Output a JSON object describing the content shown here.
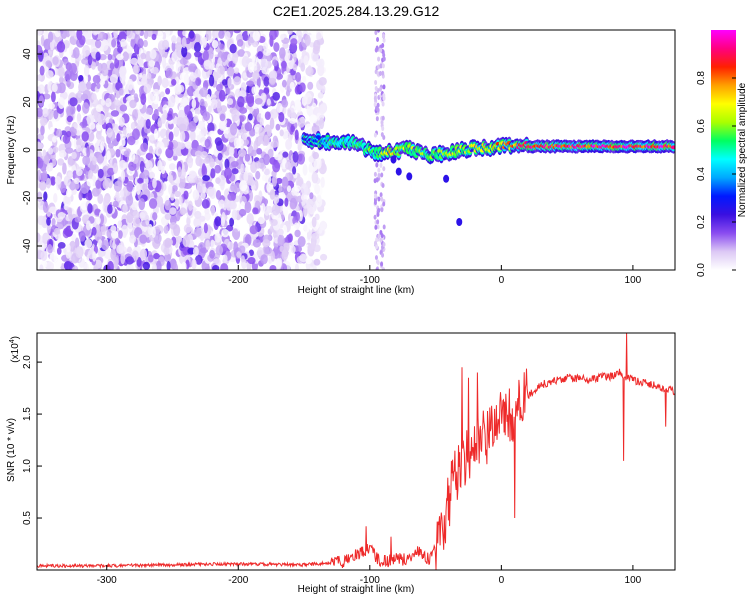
{
  "title": "C2E1.2025.284.13.29.G12",
  "chart_data": [
    {
      "type": "heatmap",
      "xlabel": "Height of straight line (km)",
      "ylabel": "Frequency (Hz)",
      "xlim": [
        -353,
        132
      ],
      "ylim": [
        -50,
        50
      ],
      "xticks": [
        -300,
        -200,
        -100,
        0,
        100
      ],
      "yticks": [
        -40,
        -20,
        0,
        20,
        40
      ],
      "colorbar": {
        "label": "Normalized spectral amplitude",
        "range": [
          0,
          1
        ],
        "ticks": [
          0.0,
          0.2,
          0.4,
          0.6,
          0.8
        ],
        "colors": [
          "#ffffff",
          "#dcc8f5",
          "#8a4cf0",
          "#3a10e0",
          "#0018ff",
          "#00a8ff",
          "#00ffff",
          "#00ff60",
          "#aaff00",
          "#ffff00",
          "#ffa000",
          "#ff2000",
          "#ff0080",
          "#ff00ff"
        ]
      },
      "ridge": {
        "description_free_values": true,
        "x": [
          -150,
          -130,
          -110,
          -95,
          -85,
          -70,
          -55,
          -40,
          -25,
          -10,
          0,
          20,
          50,
          90,
          132
        ],
        "y": [
          4.5,
          3.5,
          2.5,
          -1.5,
          -1.0,
          0.5,
          -2.0,
          -1.5,
          0.5,
          1.0,
          1.5,
          1.5,
          1.5,
          1.5,
          1.5
        ],
        "amplitude": [
          0.25,
          0.45,
          0.5,
          0.55,
          0.7,
          0.6,
          0.55,
          0.6,
          0.6,
          0.7,
          0.75,
          0.85,
          0.9,
          0.9,
          0.9
        ]
      },
      "noise_regions": [
        {
          "x": [
            -353,
            -150
          ],
          "y": [
            -50,
            50
          ],
          "amplitude": 0.2
        },
        {
          "x": [
            -150,
            -135
          ],
          "y": [
            -50,
            50
          ],
          "amplitude": 0.1
        }
      ]
    },
    {
      "type": "line",
      "xlabel": "Height of straight line (km)",
      "ylabel": "SNR (10 * v/v)",
      "scale_label": "(x10",
      "scale_exp": "4",
      "scale_close": ")",
      "xlim": [
        -353,
        132
      ],
      "ylim": [
        0,
        2.28
      ],
      "xticks": [
        -300,
        -200,
        -100,
        0,
        100
      ],
      "yticks": [
        0.5,
        1.0,
        1.5,
        2.0
      ],
      "ytick_labels": [
        "0.5",
        "1.0",
        "1.5",
        "2.0"
      ],
      "series": [
        {
          "color": "#ee2a2a",
          "x": [
            -353,
            -300,
            -250,
            -200,
            -150,
            -120,
            -110,
            -100,
            -95,
            -90,
            -85,
            -80,
            -75,
            -70,
            -65,
            -60,
            -55,
            -50,
            -45,
            -40,
            -35,
            -30,
            -25,
            -20,
            -15,
            -10,
            -5,
            0,
            5,
            10,
            15,
            20,
            25,
            30,
            40,
            50,
            60,
            70,
            80,
            85,
            90,
            95,
            100,
            110,
            120,
            132
          ],
          "y": [
            0.04,
            0.04,
            0.05,
            0.06,
            0.05,
            0.08,
            0.15,
            0.22,
            0.12,
            0.08,
            0.09,
            0.12,
            0.1,
            0.12,
            0.18,
            0.16,
            0.1,
            0.2,
            0.4,
            0.65,
            0.9,
            1.05,
            1.1,
            1.15,
            1.25,
            1.3,
            1.38,
            1.45,
            1.48,
            1.5,
            1.6,
            1.68,
            1.72,
            1.78,
            1.82,
            1.85,
            1.84,
            1.84,
            1.86,
            1.87,
            1.9,
            1.86,
            1.82,
            1.8,
            1.76,
            1.72
          ]
        }
      ],
      "spikes": [
        {
          "x": -103,
          "y": 0.42
        },
        {
          "x": -84,
          "y": 0.32
        },
        {
          "x": -38,
          "y": 1.05
        },
        {
          "x": -30,
          "y": 1.95
        },
        {
          "x": -25,
          "y": 1.85
        },
        {
          "x": -18,
          "y": 1.9
        },
        {
          "x": -5,
          "y": 1.55
        },
        {
          "x": 10,
          "y": 0.5
        },
        {
          "x": 95,
          "y": 2.28
        },
        {
          "x": 93,
          "y": 1.05
        },
        {
          "x": 125,
          "y": 1.38
        }
      ]
    }
  ]
}
